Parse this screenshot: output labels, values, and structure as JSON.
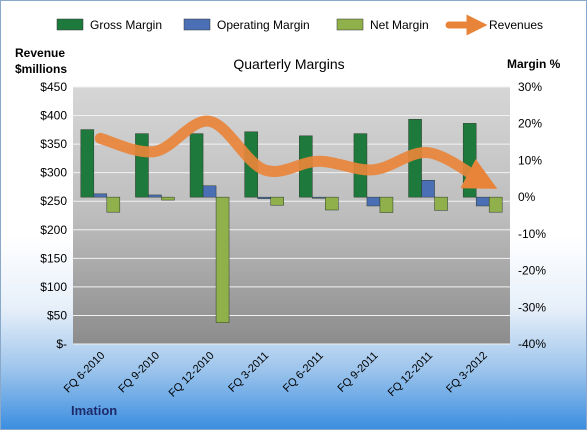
{
  "chart_data": {
    "type": "bar",
    "title": "Quarterly Margins",
    "left_axis": {
      "label_lines": [
        "Revenue",
        "$millions"
      ],
      "min": 0,
      "max": 450,
      "step": 50,
      "tick_labels": [
        "$-",
        "$50",
        "$100",
        "$150",
        "$200",
        "$250",
        "$300",
        "$350",
        "$400",
        "$450"
      ]
    },
    "right_axis": {
      "label": "Margin %",
      "min": -40,
      "max": 30,
      "step": 10,
      "tick_labels": [
        "-40%",
        "-30%",
        "-20%",
        "-10%",
        "0%",
        "10%",
        "20%",
        "30%"
      ]
    },
    "categories": [
      "FQ 6-2010",
      "FQ 9-2010",
      "FQ 12-2010",
      "FQ 3-2011",
      "FQ 6-2011",
      "FQ 9-2011",
      "FQ 12-2011",
      "FQ 3-2012"
    ],
    "series": [
      {
        "name": "Gross Margin",
        "type": "bar",
        "axis": "right",
        "color": "#1e7a3c",
        "values": [
          18.4,
          17.3,
          17.3,
          17.8,
          16.7,
          17.3,
          21.2,
          20.1
        ]
      },
      {
        "name": "Operating Margin",
        "type": "bar",
        "axis": "right",
        "color": "#4b6fb5",
        "values": [
          0.9,
          0.6,
          3.1,
          -0.4,
          -0.3,
          -2.4,
          4.6,
          -2.4
        ]
      },
      {
        "name": "Net Margin",
        "type": "bar",
        "axis": "right",
        "color": "#8fb04a",
        "values": [
          -4.1,
          -0.8,
          -34.2,
          -2.2,
          -3.5,
          -4.2,
          -3.6,
          -4.1
        ]
      },
      {
        "name": "Revenues",
        "type": "line",
        "axis": "left",
        "color": "#e8843a",
        "values": [
          360,
          337,
          390,
          305,
          320,
          305,
          335,
          285
        ]
      }
    ],
    "grid": true,
    "legend_position": "top"
  },
  "branding": {
    "company": "Imation"
  }
}
